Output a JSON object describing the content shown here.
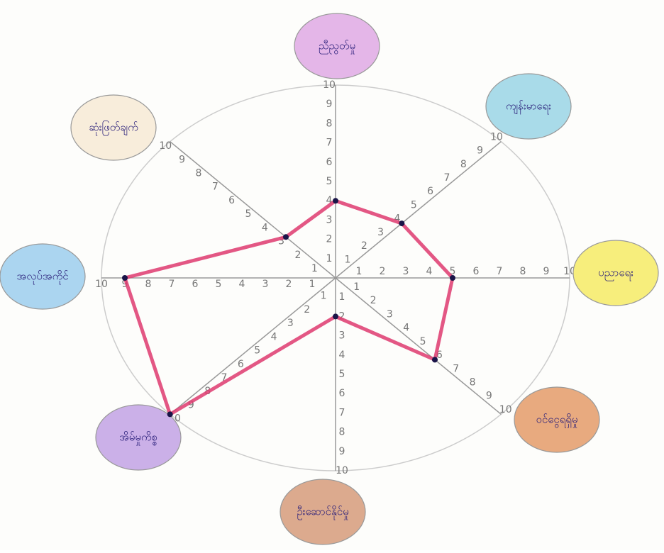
{
  "chart_data": {
    "type": "radar",
    "categories": [
      "ညီညွတ်မှု",
      "ကျန်းမာရေး",
      "ပညာရေး",
      "ဝင်ငွေရရှိမှု",
      "ဦးဆောင်နိုင်မှု",
      "အိမ်မှုကိစ္စ",
      "အလုပ်အကိုင်",
      "ဆုံးဖြတ်ချက်"
    ],
    "category_colors": [
      "#e4b6e8",
      "#a9dbe9",
      "#f7ee7c",
      "#e8aa7f",
      "#dcaa8e",
      "#cbb0e8",
      "#abd5f0",
      "#f8eddb"
    ],
    "series": [
      {
        "color": "#de3a6e",
        "values": [
          4,
          4,
          5,
          6,
          2,
          10,
          9,
          3
        ]
      }
    ],
    "rlim": [
      0,
      10
    ],
    "rticks": [
      1,
      2,
      3,
      4,
      5,
      6,
      7,
      8,
      9,
      10
    ]
  }
}
